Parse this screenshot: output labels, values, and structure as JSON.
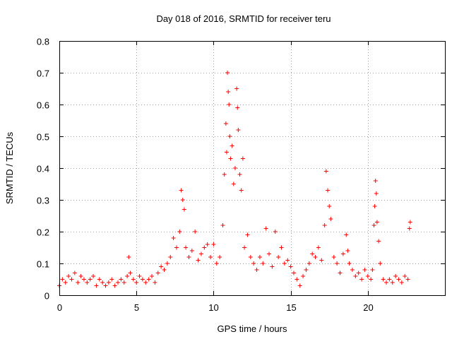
{
  "chart_data": {
    "type": "scatter",
    "title": "Day 018 of 2016, SRMTID for receiver teru",
    "xlabel": "GPS time / hours",
    "ylabel": "SRMTID / TECUs",
    "xlim": [
      0,
      25
    ],
    "ylim": [
      0,
      0.8
    ],
    "x_ticks": [
      0,
      5,
      10,
      15,
      20
    ],
    "y_ticks": [
      "0",
      "0.1",
      "0.2",
      "0.3",
      "0.4",
      "0.5",
      "0.6",
      "0.7",
      "0.8"
    ],
    "grid": true,
    "marker": "plus",
    "color": "#ff0000",
    "series": [
      {
        "name": "SRMTID",
        "x": [
          0.0,
          0.2,
          0.4,
          0.6,
          0.8,
          1.0,
          1.2,
          1.4,
          1.6,
          1.8,
          2.0,
          2.2,
          2.4,
          2.6,
          2.8,
          3.0,
          3.2,
          3.4,
          3.6,
          3.8,
          4.0,
          4.2,
          4.4,
          4.5,
          4.6,
          4.8,
          5.0,
          5.2,
          5.4,
          5.6,
          5.8,
          6.0,
          6.2,
          6.4,
          6.6,
          6.8,
          7.0,
          7.2,
          7.4,
          7.6,
          7.8,
          7.9,
          8.0,
          8.1,
          8.2,
          8.4,
          8.6,
          8.8,
          9.0,
          9.2,
          9.4,
          9.6,
          9.8,
          10.0,
          10.2,
          10.4,
          10.6,
          10.7,
          10.8,
          10.85,
          10.9,
          10.95,
          11.0,
          11.05,
          11.1,
          11.2,
          11.3,
          11.4,
          11.5,
          11.55,
          11.6,
          11.7,
          11.8,
          11.9,
          12.0,
          12.2,
          12.4,
          12.6,
          12.8,
          13.0,
          13.2,
          13.4,
          13.6,
          13.8,
          14.0,
          14.2,
          14.4,
          14.6,
          14.8,
          15.0,
          15.2,
          15.4,
          15.6,
          15.8,
          16.0,
          16.2,
          16.4,
          16.6,
          16.8,
          17.0,
          17.2,
          17.3,
          17.4,
          17.5,
          17.6,
          17.8,
          18.0,
          18.2,
          18.4,
          18.6,
          18.7,
          18.8,
          19.0,
          19.2,
          19.4,
          19.6,
          19.8,
          20.0,
          20.2,
          20.3,
          20.4,
          20.45,
          20.5,
          20.55,
          20.6,
          20.7,
          20.8,
          21.0,
          21.2,
          21.4,
          21.6,
          21.8,
          22.0,
          22.2,
          22.4,
          22.6,
          22.7,
          22.75
        ],
        "y": [
          0.03,
          0.05,
          0.04,
          0.06,
          0.05,
          0.07,
          0.04,
          0.06,
          0.05,
          0.04,
          0.05,
          0.06,
          0.03,
          0.05,
          0.04,
          0.03,
          0.04,
          0.05,
          0.03,
          0.04,
          0.05,
          0.04,
          0.06,
          0.12,
          0.07,
          0.05,
          0.04,
          0.06,
          0.05,
          0.04,
          0.05,
          0.06,
          0.04,
          0.07,
          0.09,
          0.08,
          0.1,
          0.12,
          0.18,
          0.15,
          0.2,
          0.33,
          0.3,
          0.27,
          0.15,
          0.12,
          0.14,
          0.2,
          0.11,
          0.13,
          0.15,
          0.16,
          0.12,
          0.16,
          0.1,
          0.12,
          0.22,
          0.38,
          0.54,
          0.45,
          0.7,
          0.64,
          0.6,
          0.5,
          0.43,
          0.47,
          0.35,
          0.4,
          0.65,
          0.59,
          0.52,
          0.38,
          0.33,
          0.43,
          0.15,
          0.19,
          0.12,
          0.1,
          0.08,
          0.12,
          0.1,
          0.21,
          0.13,
          0.09,
          0.2,
          0.12,
          0.15,
          0.1,
          0.11,
          0.09,
          0.07,
          0.05,
          0.03,
          0.06,
          0.08,
          0.1,
          0.13,
          0.12,
          0.15,
          0.11,
          0.22,
          0.39,
          0.33,
          0.28,
          0.24,
          0.12,
          0.1,
          0.07,
          0.13,
          0.19,
          0.14,
          0.1,
          0.08,
          0.06,
          0.07,
          0.05,
          0.08,
          0.06,
          0.05,
          0.08,
          0.22,
          0.28,
          0.36,
          0.32,
          0.23,
          0.17,
          0.1,
          0.05,
          0.04,
          0.05,
          0.04,
          0.06,
          0.05,
          0.04,
          0.06,
          0.05,
          0.21,
          0.23
        ]
      }
    ]
  }
}
